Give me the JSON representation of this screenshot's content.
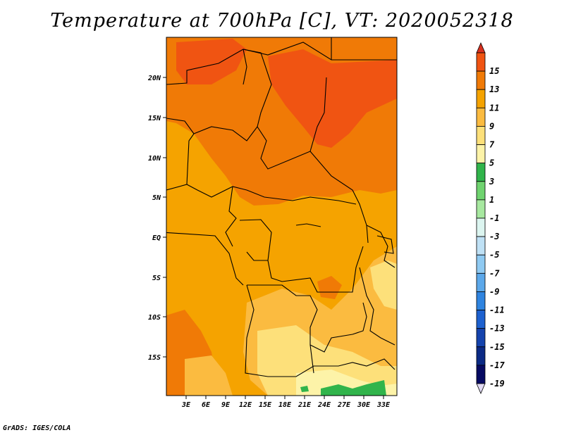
{
  "title": "Temperature at 700hPa [C], VT: 2020052318",
  "credit": "GrADS: IGES/COLA",
  "map": {
    "lon_range": [
      0,
      35
    ],
    "lat_range": [
      -20,
      25
    ],
    "lat_ticks": [
      "20N",
      "15N",
      "10N",
      "5N",
      "EQ",
      "5S",
      "10S",
      "15S"
    ],
    "lon_ticks": [
      "3E",
      "6E",
      "9E",
      "12E",
      "15E",
      "18E",
      "21E",
      "24E",
      "27E",
      "30E",
      "33E"
    ],
    "background_color": "#f5a300"
  },
  "colorbar": {
    "labels": [
      "15",
      "13",
      "11",
      "9",
      "7",
      "5",
      "3",
      "1",
      "-1",
      "-3",
      "-5",
      "-7",
      "-9",
      "-11",
      "-13",
      "-15",
      "-17",
      "-19"
    ],
    "colors": [
      "#d7301f",
      "#f05412",
      "#f07a06",
      "#f5a300",
      "#fbbb40",
      "#fde07a",
      "#fdf3a8",
      "#31b44b",
      "#6fd36f",
      "#a7e8a0",
      "#dcf5f0",
      "#bfe1f5",
      "#8fcaf2",
      "#5ca8ea",
      "#2f84e0",
      "#1d61cf",
      "#1443ad",
      "#0b2a85",
      "#060a62",
      "#e0d9f3"
    ]
  }
}
